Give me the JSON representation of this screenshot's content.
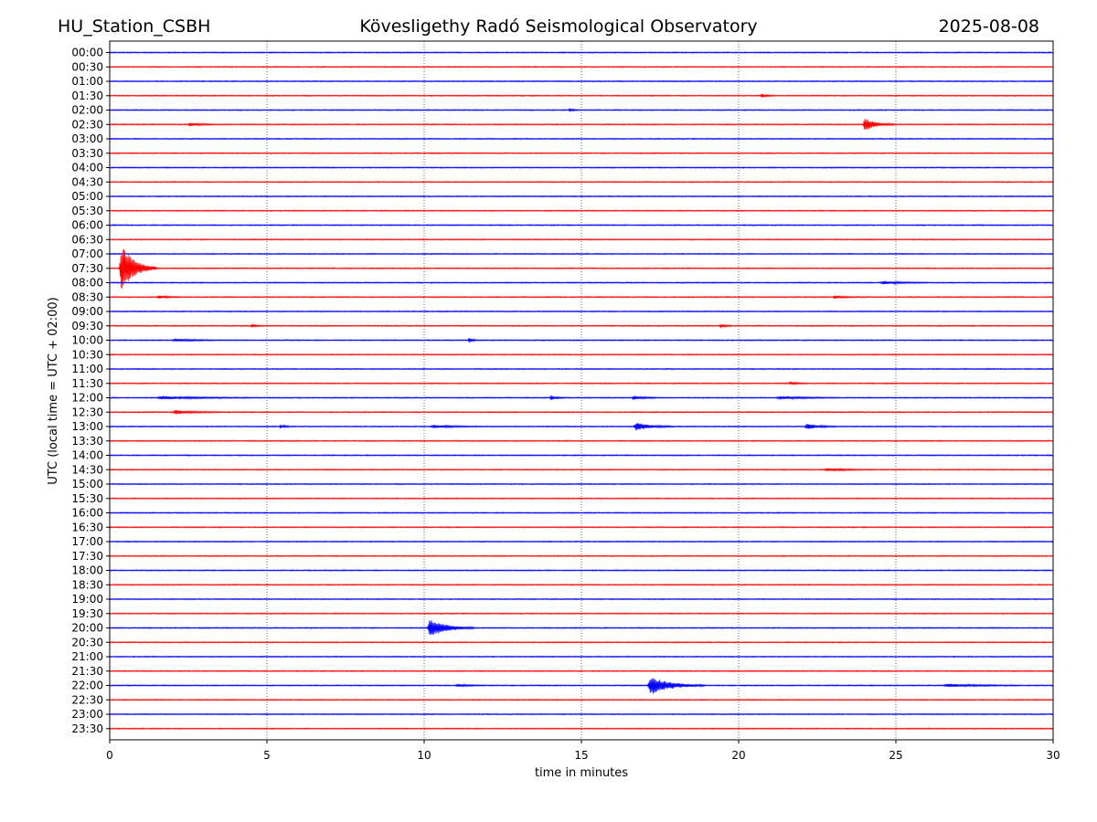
{
  "header": {
    "station": "HU_Station_CSBH",
    "title": "Kövesligethy Radó Seismological Observatory",
    "date": "2025-08-08"
  },
  "chart_data": {
    "type": "line",
    "title": "Kövesligethy Radó Seismological Observatory",
    "xlabel": "time in minutes",
    "ylabel": "UTC (local time = UTC + 02:00)",
    "xlim": [
      0,
      30
    ],
    "x_ticks": [
      "0",
      "5",
      "10",
      "15",
      "20",
      "25",
      "30"
    ],
    "x_gridlines": [
      5,
      10,
      15,
      20,
      25
    ],
    "grid": "vertical dotted",
    "colors": {
      "even_rows": "#0000ff",
      "odd_rows": "#ff0000"
    },
    "rows": [
      "00:00",
      "00:30",
      "01:00",
      "01:30",
      "02:00",
      "02:30",
      "03:00",
      "03:30",
      "04:00",
      "04:30",
      "05:00",
      "05:30",
      "06:00",
      "06:30",
      "07:00",
      "07:30",
      "08:00",
      "08:30",
      "09:00",
      "09:30",
      "10:00",
      "10:30",
      "11:00",
      "11:30",
      "12:00",
      "12:30",
      "13:00",
      "13:30",
      "14:00",
      "14:30",
      "15:00",
      "15:30",
      "16:00",
      "16:30",
      "17:00",
      "17:30",
      "18:00",
      "18:30",
      "19:00",
      "19:30",
      "20:00",
      "20:30",
      "21:00",
      "21:30",
      "22:00",
      "22:30",
      "23:00",
      "23:30"
    ],
    "events": [
      {
        "row": "07:30",
        "start_min": 0.3,
        "duration_min": 1.2,
        "amplitude": 26
      },
      {
        "row": "02:30",
        "start_min": 23.95,
        "duration_min": 1.0,
        "amplitude": 7
      },
      {
        "row": "02:30",
        "start_min": 2.5,
        "duration_min": 0.8,
        "amplitude": 2
      },
      {
        "row": "01:30",
        "start_min": 20.7,
        "duration_min": 0.4,
        "amplitude": 2
      },
      {
        "row": "20:00",
        "start_min": 10.1,
        "duration_min": 1.5,
        "amplitude": 10
      },
      {
        "row": "22:00",
        "start_min": 17.1,
        "duration_min": 1.8,
        "amplitude": 10
      },
      {
        "row": "13:00",
        "start_min": 16.65,
        "duration_min": 1.3,
        "amplitude": 4
      },
      {
        "row": "13:00",
        "start_min": 22.1,
        "duration_min": 1.0,
        "amplitude": 3
      },
      {
        "row": "13:00",
        "start_min": 5.4,
        "duration_min": 0.4,
        "amplitude": 2
      },
      {
        "row": "13:00",
        "start_min": 10.2,
        "duration_min": 1.6,
        "amplitude": 1.5
      },
      {
        "row": "12:00",
        "start_min": 14.0,
        "duration_min": 0.5,
        "amplitude": 2.5
      },
      {
        "row": "12:00",
        "start_min": 16.6,
        "duration_min": 0.8,
        "amplitude": 2
      },
      {
        "row": "12:00",
        "start_min": 1.5,
        "duration_min": 3.0,
        "amplitude": 1.5
      },
      {
        "row": "12:00",
        "start_min": 21.2,
        "duration_min": 2.0,
        "amplitude": 1.5
      },
      {
        "row": "12:30",
        "start_min": 2.0,
        "duration_min": 1.5,
        "amplitude": 2
      },
      {
        "row": "10:00",
        "start_min": 11.4,
        "duration_min": 0.3,
        "amplitude": 3
      },
      {
        "row": "10:00",
        "start_min": 2.0,
        "duration_min": 1.5,
        "amplitude": 1.5
      },
      {
        "row": "02:00",
        "start_min": 14.6,
        "duration_min": 0.3,
        "amplitude": 2
      },
      {
        "row": "08:30",
        "start_min": 1.5,
        "duration_min": 0.8,
        "amplitude": 1.5
      },
      {
        "row": "08:30",
        "start_min": 23.0,
        "duration_min": 0.8,
        "amplitude": 1.5
      },
      {
        "row": "09:30",
        "start_min": 4.5,
        "duration_min": 0.3,
        "amplitude": 2
      },
      {
        "row": "09:30",
        "start_min": 19.4,
        "duration_min": 0.4,
        "amplitude": 2
      },
      {
        "row": "14:30",
        "start_min": 22.7,
        "duration_min": 1.5,
        "amplitude": 1.5
      },
      {
        "row": "11:30",
        "start_min": 21.6,
        "duration_min": 0.6,
        "amplitude": 1.5
      },
      {
        "row": "08:00",
        "start_min": 24.5,
        "duration_min": 1.5,
        "amplitude": 1.5
      },
      {
        "row": "22:00",
        "start_min": 26.5,
        "duration_min": 2.5,
        "amplitude": 1.5
      },
      {
        "row": "22:00",
        "start_min": 11.0,
        "duration_min": 1.0,
        "amplitude": 1.2
      }
    ]
  }
}
